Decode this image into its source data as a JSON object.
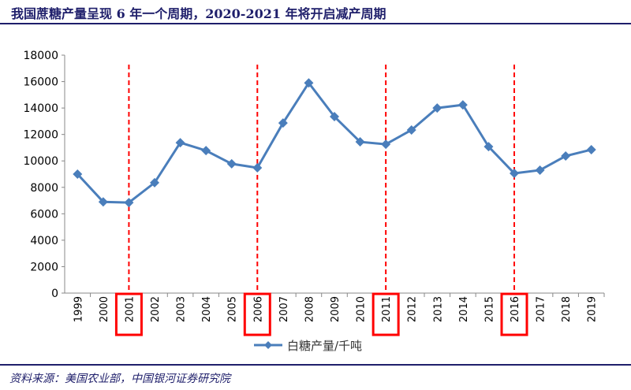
{
  "title": "我国蔗糖产量呈现 6 年一个周期，2020-2021 年将开启减产周期",
  "source": "资料来源：美国农业部，中国银河证券研究院",
  "colors": {
    "series": "#4a7ebb",
    "highlight": "#ff0000",
    "title": "#1f1f6b"
  },
  "chart_data": {
    "type": "line",
    "title": "我国蔗糖产量呈现 6 年一个周期，2020-2021 年将开启减产周期",
    "categories": [
      "1999",
      "2000",
      "2001",
      "2002",
      "2003",
      "2004",
      "2005",
      "2006",
      "2007",
      "2008",
      "2009",
      "2010",
      "2011",
      "2012",
      "2013",
      "2014",
      "2015",
      "2016",
      "2017",
      "2018",
      "2019"
    ],
    "series": [
      {
        "name": "白糖产量/千吨",
        "values": [
          9000,
          6900,
          6850,
          8350,
          11380,
          10780,
          9780,
          9480,
          12870,
          15900,
          13350,
          11440,
          11260,
          12340,
          14000,
          14240,
          11080,
          9060,
          9300,
          10370,
          10850
        ]
      }
    ],
    "highlighted_years": [
      "2001",
      "2006",
      "2011",
      "2016"
    ],
    "ylim": [
      0,
      18000
    ],
    "yticks": [
      0,
      2000,
      4000,
      6000,
      8000,
      10000,
      12000,
      14000,
      16000,
      18000
    ],
    "xlabel": "",
    "ylabel": "",
    "grid": false,
    "legend": "bottom"
  }
}
